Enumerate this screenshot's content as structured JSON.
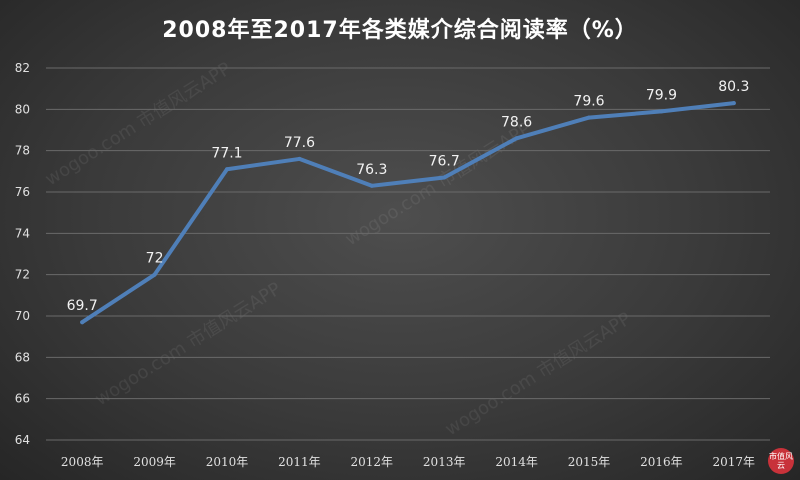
{
  "title": "2008年至2017年各类媒介综合阅读率（%）",
  "watermark": "wogoo.com 市值风云APP",
  "chart_data": {
    "type": "line",
    "title": "2008年至2017年各类媒介综合阅读率（%）",
    "categories": [
      "2008年",
      "2009年",
      "2010年",
      "2011年",
      "2012年",
      "2013年",
      "2014年",
      "2015年",
      "2016年",
      "2017年"
    ],
    "series": [
      {
        "values": [
          69.7,
          72,
          77.1,
          77.6,
          76.3,
          76.7,
          78.6,
          79.6,
          79.9,
          80.3
        ]
      }
    ],
    "data_labels": [
      "69.7",
      "72",
      "77.1",
      "77.6",
      "76.3",
      "76.7",
      "78.6",
      "79.6",
      "79.9",
      "80.3"
    ],
    "ylim": [
      64,
      82
    ],
    "yticks": [
      64,
      66,
      68,
      70,
      72,
      74,
      76,
      78,
      80,
      82
    ],
    "grid": true,
    "colors": {
      "line": "#4f7fb8",
      "background": "#3a3a3a",
      "grid": "#6a6a6a",
      "text": "#e0e0e0"
    }
  },
  "logo": {
    "icon": "shizhi-fengyun-logo",
    "text": "市值风云"
  }
}
